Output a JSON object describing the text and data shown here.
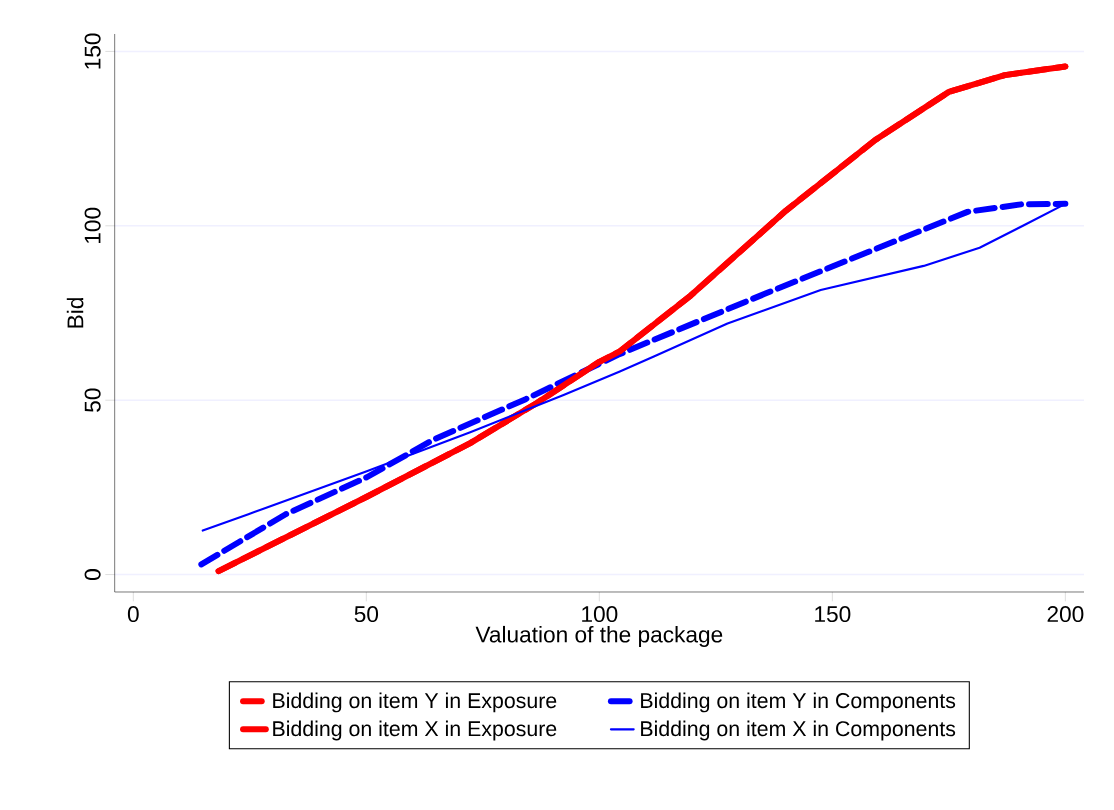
{
  "chart_data": {
    "type": "line",
    "xlabel": "Valuation of the package",
    "ylabel": "Bid",
    "xlim": [
      -4,
      204
    ],
    "ylim": [
      -5,
      155
    ],
    "xticks": [
      0,
      50,
      100,
      150,
      200
    ],
    "yticks": [
      0,
      50,
      100,
      150
    ],
    "grid": "y",
    "legend": "bottom",
    "marker": "none",
    "series": [
      {
        "name": "Bidding on item Y in Exposure",
        "color": "#ff0000",
        "line_style": "dashed",
        "x": [
          18.3,
          50.1,
          72.3,
          86.6,
          100,
          104.4,
          119.6,
          140,
          159.2,
          175,
          187,
          200
        ],
        "values": [
          1.0,
          22.3,
          37.7,
          49.2,
          61,
          64,
          80,
          104.3,
          124.6,
          138.4,
          143.2,
          145.7
        ]
      },
      {
        "name": "Bidding on item Y in Components",
        "color": "#0000ff",
        "line_style": "dashed",
        "x": [
          14.6,
          32.7,
          50.1,
          64.3,
          84.2,
          104,
          111.7,
          135.5,
          159.2,
          179,
          190.8,
          200
        ],
        "values": [
          2.9,
          17.3,
          27.9,
          38.6,
          50.3,
          63,
          67.3,
          80.5,
          93.3,
          104,
          106.2,
          106.3
        ]
      },
      {
        "name": "Bidding on item X in Exposure",
        "color": "#ff0000",
        "line_style": "solid",
        "x": [
          18.3,
          50.1,
          72.3,
          86.6,
          100,
          104.4,
          119.6,
          140,
          159.2,
          175,
          187,
          200
        ],
        "values": [
          1.0,
          22.3,
          37.7,
          49.2,
          61,
          64,
          80,
          104.3,
          124.6,
          138.4,
          143.2,
          145.7
        ]
      },
      {
        "name": "Bidding on item X in Components",
        "color": "#0000ff",
        "line_style": "solid",
        "x": [
          14.9,
          24.7,
          50.1,
          72.3,
          92.2,
          104.4,
          111.7,
          127.5,
          147.5,
          169.6,
          181.6,
          191,
          200
        ],
        "values": [
          12.6,
          17.3,
          29.6,
          40.8,
          51.4,
          58.2,
          62.5,
          72,
          81.6,
          88.5,
          93.7,
          100.1,
          106.3
        ]
      }
    ]
  }
}
